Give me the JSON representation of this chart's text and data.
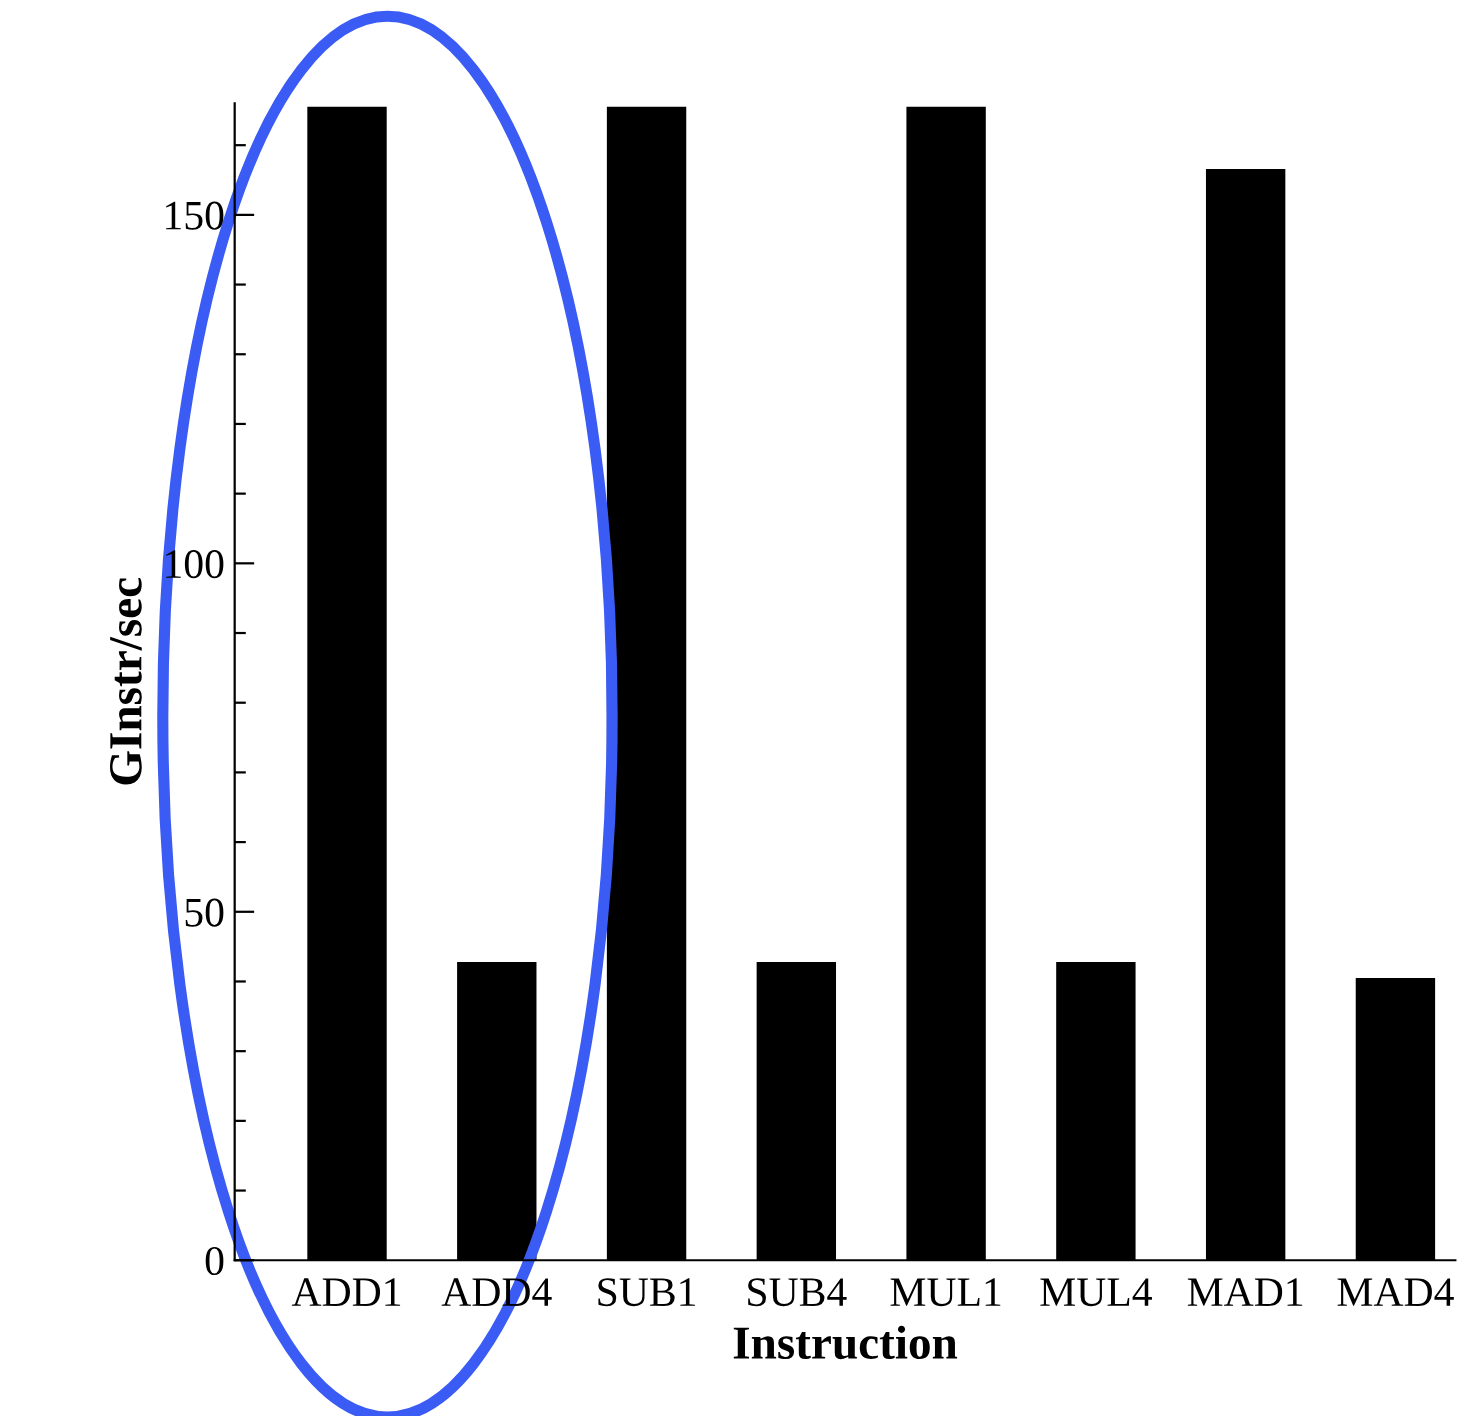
{
  "chart_data": {
    "type": "bar",
    "xlabel": "Instruction",
    "ylabel": "GInstr/sec",
    "categories": [
      "ADD1",
      "ADD4",
      "SUB1",
      "SUB4",
      "MUL1",
      "MUL4",
      "MAD1",
      "MAD4"
    ],
    "values": [
      165.5,
      42.8,
      165.5,
      42.8,
      165.5,
      42.8,
      156.6,
      40.5
    ],
    "color": "#000000",
    "ylim": [
      0,
      166
    ],
    "yticks": [
      0,
      {
        "value": 10,
        "label": null
      },
      {
        "value": 20,
        "label": null
      },
      {
        "value": 30,
        "label": null
      },
      {
        "value": 40,
        "label": null
      },
      50,
      {
        "value": 60,
        "label": null
      },
      {
        "value": 70,
        "label": null
      },
      {
        "value": 80,
        "label": null
      },
      {
        "value": 90,
        "label": null
      },
      100,
      {
        "value": 110,
        "label": null
      },
      {
        "value": 120,
        "label": null
      },
      {
        "value": 130,
        "label": null
      },
      {
        "value": 140,
        "label": null
      },
      150,
      {
        "value": 160,
        "label": null
      }
    ],
    "grid": false,
    "legend": false
  }
}
